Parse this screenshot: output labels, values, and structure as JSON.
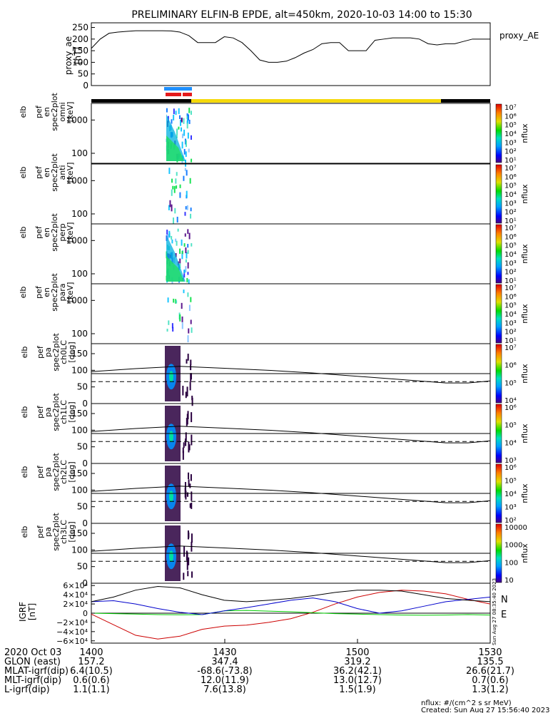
{
  "title": "PRELIMINARY ELFIN-B EPDE, alt=450km, 2020-10-03 14:00 to 15:30",
  "colors": {
    "blue_bar": "#1e90ff",
    "red_bar": "#e41a1c",
    "yellow_bar": "#f5d90a",
    "black_bar": "#000000",
    "bx": "#0000cc",
    "by": "#00cc00",
    "bz": "#cc0000",
    "bt": "#000000"
  },
  "panels": [
    {
      "ylabel": [
        "proxy_ae",
        "[nT]"
      ],
      "ticks": [
        "250",
        "200",
        "150",
        "100",
        "50",
        "0"
      ],
      "right_label": "proxy_AE"
    },
    {
      "ylabel": [
        "elb",
        "pef",
        "en",
        "spec2plot",
        "omni",
        "[keV]"
      ],
      "ticks": [
        "1000",
        "100"
      ],
      "cbar_ticks": [
        "10⁷",
        "10⁶",
        "10⁵",
        "10⁴",
        "10³",
        "10²",
        "10¹"
      ],
      "cbar_label": "nflux"
    },
    {
      "ylabel": [
        "elb",
        "pef",
        "en",
        "spec2plot",
        "anti",
        "[keV]"
      ],
      "ticks": [
        "1000",
        "100"
      ],
      "cbar_ticks": [
        "10⁷",
        "10⁶",
        "10⁵",
        "10⁴",
        "10³",
        "10²",
        "10¹"
      ],
      "cbar_label": "nflux"
    },
    {
      "ylabel": [
        "elb",
        "pef",
        "en",
        "spec2plot",
        "perp",
        "[keV]"
      ],
      "ticks": [
        "1000",
        "100"
      ],
      "cbar_ticks": [
        "10⁷",
        "10⁶",
        "10⁵",
        "10⁴",
        "10³",
        "10²",
        "10¹"
      ],
      "cbar_label": "nflux"
    },
    {
      "ylabel": [
        "elb",
        "pef",
        "en",
        "spec2plot",
        "para",
        "[keV]"
      ],
      "ticks": [
        "1000",
        "100"
      ],
      "cbar_ticks": [
        "10⁷",
        "10⁶",
        "10⁵",
        "10⁴",
        "10³",
        "10²",
        "10¹"
      ],
      "cbar_label": "nflux"
    },
    {
      "ylabel": [
        "elb",
        "pef",
        "pa",
        "spec2plot",
        "ch0LC",
        "[deg]"
      ],
      "ticks": [
        "150",
        "100",
        "50",
        "0"
      ],
      "cbar_ticks": [
        "10⁷",
        "10⁶",
        "10⁵",
        "10⁴"
      ],
      "cbar_label": "nflux"
    },
    {
      "ylabel": [
        "elb",
        "pef",
        "pa",
        "spec2plot",
        "ch1LC",
        "[deg]"
      ],
      "ticks": [
        "150",
        "100",
        "50",
        "0"
      ],
      "cbar_ticks": [
        "10⁶",
        "10⁵",
        "10⁴",
        "10³"
      ],
      "cbar_label": "nflux"
    },
    {
      "ylabel": [
        "elb",
        "pef",
        "pa",
        "spec2plot",
        "ch2LC",
        "[deg]"
      ],
      "ticks": [
        "150",
        "100",
        "50",
        "0"
      ],
      "cbar_ticks": [
        "10⁶",
        "10⁵",
        "10⁴",
        "10³",
        "10²"
      ],
      "cbar_label": "nflux"
    },
    {
      "ylabel": [
        "elb",
        "pef",
        "pa",
        "spec2plot",
        "ch3LC",
        "[deg]"
      ],
      "ticks": [
        "150",
        "100",
        "50",
        "0"
      ],
      "cbar_ticks": [
        "10000",
        "1000",
        "100",
        "10"
      ],
      "cbar_label": "nflux"
    },
    {
      "ylabel": [
        "IGRF",
        "[nT]"
      ],
      "ticks": [
        "6×10⁴",
        "4×10⁴",
        "2×10⁴",
        "0",
        "−2×10⁴",
        "−4×10⁴",
        "−6×10⁴"
      ],
      "legend": [
        "N",
        "E"
      ],
      "vertical_note": "Sun Aug 27 08:35:40 2023"
    }
  ],
  "chart_data": {
    "type": "line",
    "xlim": [
      0,
      90
    ],
    "proxy_ae": {
      "x": [
        0,
        2,
        4,
        6,
        8,
        10,
        12,
        14,
        16,
        18,
        20,
        22,
        24,
        26,
        28,
        30,
        32,
        34,
        36,
        38,
        40,
        42,
        44,
        46,
        48,
        50,
        52,
        54,
        56,
        58,
        60,
        62,
        64,
        66,
        68,
        70,
        72,
        74,
        76,
        78,
        80,
        82,
        84,
        86,
        88,
        90
      ],
      "y": [
        160,
        200,
        225,
        230,
        233,
        236,
        236,
        236,
        236,
        235,
        230,
        215,
        185,
        185,
        185,
        210,
        205,
        185,
        150,
        110,
        100,
        100,
        105,
        120,
        140,
        155,
        180,
        185,
        185,
        150,
        150,
        150,
        195,
        200,
        205,
        205,
        205,
        200,
        180,
        175,
        180,
        180,
        190,
        200,
        200,
        200
      ],
      "ylim": [
        0,
        270
      ]
    },
    "loss_cone_lines": {
      "x": [
        0,
        10,
        20,
        30,
        40,
        50,
        60,
        70,
        80,
        85,
        90
      ],
      "solid_curve": [
        96,
        105,
        112,
        106,
        100,
        92,
        82,
        72,
        62,
        62,
        68
      ],
      "lower_curve_dashed": [
        66,
        66,
        66,
        66,
        66,
        66,
        66,
        66,
        66,
        66,
        66
      ],
      "ylim": [
        0,
        180
      ]
    },
    "igrf": {
      "x": [
        0,
        5,
        10,
        15,
        20,
        25,
        30,
        35,
        40,
        45,
        50,
        55,
        60,
        65,
        70,
        75,
        80,
        85,
        90
      ],
      "N": [
        -2000,
        -25000,
        -48000,
        -56000,
        -50000,
        -35000,
        -28000,
        -26000,
        -20000,
        -12000,
        2000,
        20000,
        35000,
        45000,
        50000,
        48000,
        42000,
        30000,
        20000
      ],
      "E": [
        0,
        -1000,
        -2000,
        -3000,
        -3500,
        -3000,
        5000,
        6000,
        4500,
        3000,
        1000,
        -1000,
        -2000,
        -3000,
        -4000,
        -4500,
        -4000,
        -3000,
        -4000
      ],
      "Bx": [
        25000,
        27000,
        20000,
        10000,
        2000,
        -3000,
        5000,
        12000,
        20000,
        28000,
        33000,
        25000,
        10000,
        0,
        5000,
        15000,
        25000,
        30000,
        35000
      ],
      "Bt": [
        25000,
        35000,
        50000,
        58000,
        55000,
        40000,
        28000,
        25000,
        28000,
        32000,
        38000,
        45000,
        50000,
        50000,
        48000,
        40000,
        32000,
        28000,
        25000
      ],
      "ylim": [
        -65000,
        65000
      ]
    },
    "colorbar_type": "rainbow log"
  },
  "x_axis": {
    "ticks": [
      "1400",
      "1430",
      "1500",
      "1530"
    ],
    "rows": [
      {
        "label": "2020 Oct 03",
        "values": [
          "",
          "",
          "",
          ""
        ]
      },
      {
        "label": "GLON (east)",
        "values": [
          "157.2",
          "347.4",
          "319.2",
          "135.5"
        ]
      },
      {
        "label": "MLAT-igrf(dip)",
        "values": [
          "6.4(10.5)",
          "-68.6(-73.8)",
          "36.2(42.1)",
          "26.6(21.7)"
        ]
      },
      {
        "label": "MLT-igrf(dip)",
        "values": [
          "0.6(0.6)",
          "12.0(11.9)",
          "13.0(12.7)",
          "0.7(0.6)"
        ]
      },
      {
        "label": "L-igrf(dip)",
        "values": [
          "1.1(1.1)",
          "7.6(13.8)",
          "1.5(1.9)",
          "1.3(1.2)"
        ]
      }
    ]
  },
  "footer": {
    "units": "nflux: #/(cm^2 s sr MeV)",
    "created": "Created: Sun Aug 27 15:56:40 2023"
  }
}
